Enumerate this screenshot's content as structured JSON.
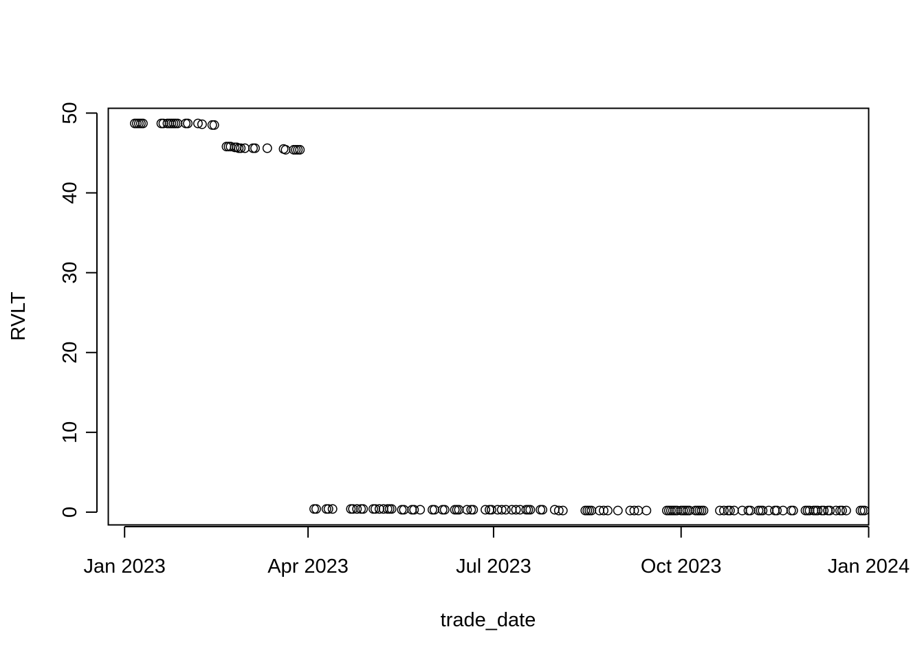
{
  "chart_data": {
    "type": "scatter",
    "xlabel": "trade_date",
    "ylabel": "RVLT",
    "ylim": [
      -1.6,
      50.6
    ],
    "xlim": [
      "2022-12-24",
      "2024-01-01"
    ],
    "x_ticks": [
      {
        "date": "2023-01-01",
        "label": "Jan 2023"
      },
      {
        "date": "2023-04-01",
        "label": "Apr 2023"
      },
      {
        "date": "2023-07-01",
        "label": "Jul 2023"
      },
      {
        "date": "2023-10-01",
        "label": "Oct 2023"
      },
      {
        "date": "2024-01-01",
        "label": "Jan 2024"
      }
    ],
    "y_ticks": [
      0,
      10,
      20,
      30,
      40,
      50
    ],
    "marker": "open-circle",
    "grid": false,
    "series": [
      {
        "points": [
          [
            "2023-01-06",
            48.7
          ],
          [
            "2023-01-07",
            48.7
          ],
          [
            "2023-01-08",
            48.7
          ],
          [
            "2023-01-09",
            48.7
          ],
          [
            "2023-01-10",
            48.7
          ],
          [
            "2023-01-19",
            48.7
          ],
          [
            "2023-01-20",
            48.7
          ],
          [
            "2023-01-22",
            48.7
          ],
          [
            "2023-01-23",
            48.7
          ],
          [
            "2023-01-24",
            48.7
          ],
          [
            "2023-01-25",
            48.7
          ],
          [
            "2023-01-26",
            48.7
          ],
          [
            "2023-01-27",
            48.7
          ],
          [
            "2023-01-31",
            48.7
          ],
          [
            "2023-02-01",
            48.7
          ],
          [
            "2023-02-06",
            48.7
          ],
          [
            "2023-02-08",
            48.6
          ],
          [
            "2023-02-13",
            48.5
          ],
          [
            "2023-02-14",
            48.5
          ],
          [
            "2023-02-20",
            45.8
          ],
          [
            "2023-02-21",
            45.8
          ],
          [
            "2023-02-22",
            45.8
          ],
          [
            "2023-02-24",
            45.7
          ],
          [
            "2023-02-25",
            45.7
          ],
          [
            "2023-02-26",
            45.6
          ],
          [
            "2023-02-27",
            45.6
          ],
          [
            "2023-03-01",
            45.6
          ],
          [
            "2023-03-05",
            45.6
          ],
          [
            "2023-03-06",
            45.6
          ],
          [
            "2023-03-12",
            45.6
          ],
          [
            "2023-03-20",
            45.5
          ],
          [
            "2023-03-21",
            45.4
          ],
          [
            "2023-03-25",
            45.4
          ],
          [
            "2023-03-26",
            45.4
          ],
          [
            "2023-03-27",
            45.4
          ],
          [
            "2023-03-28",
            45.4
          ],
          [
            "2023-04-04",
            0.4
          ],
          [
            "2023-04-05",
            0.4
          ],
          [
            "2023-04-10",
            0.4
          ],
          [
            "2023-04-11",
            0.4
          ],
          [
            "2023-04-13",
            0.4
          ],
          [
            "2023-04-22",
            0.4
          ],
          [
            "2023-04-23",
            0.4
          ],
          [
            "2023-04-25",
            0.4
          ],
          [
            "2023-04-27",
            0.4
          ],
          [
            "2023-04-28",
            0.4
          ],
          [
            "2023-05-03",
            0.4
          ],
          [
            "2023-05-04",
            0.4
          ],
          [
            "2023-05-06",
            0.4
          ],
          [
            "2023-05-08",
            0.4
          ],
          [
            "2023-05-10",
            0.4
          ],
          [
            "2023-05-11",
            0.4
          ],
          [
            "2023-05-12",
            0.4
          ],
          [
            "2023-05-17",
            0.3
          ],
          [
            "2023-05-18",
            0.3
          ],
          [
            "2023-05-22",
            0.3
          ],
          [
            "2023-05-23",
            0.3
          ],
          [
            "2023-05-26",
            0.3
          ],
          [
            "2023-06-01",
            0.3
          ],
          [
            "2023-06-02",
            0.3
          ],
          [
            "2023-06-06",
            0.3
          ],
          [
            "2023-06-07",
            0.3
          ],
          [
            "2023-06-12",
            0.3
          ],
          [
            "2023-06-13",
            0.3
          ],
          [
            "2023-06-14",
            0.3
          ],
          [
            "2023-06-18",
            0.3
          ],
          [
            "2023-06-20",
            0.3
          ],
          [
            "2023-06-21",
            0.3
          ],
          [
            "2023-06-27",
            0.3
          ],
          [
            "2023-06-29",
            0.3
          ],
          [
            "2023-06-30",
            0.3
          ],
          [
            "2023-07-03",
            0.3
          ],
          [
            "2023-07-05",
            0.3
          ],
          [
            "2023-07-07",
            0.3
          ],
          [
            "2023-07-10",
            0.3
          ],
          [
            "2023-07-12",
            0.3
          ],
          [
            "2023-07-14",
            0.3
          ],
          [
            "2023-07-17",
            0.3
          ],
          [
            "2023-07-18",
            0.3
          ],
          [
            "2023-07-19",
            0.3
          ],
          [
            "2023-07-24",
            0.3
          ],
          [
            "2023-07-25",
            0.3
          ],
          [
            "2023-07-31",
            0.3
          ],
          [
            "2023-08-02",
            0.2
          ],
          [
            "2023-08-04",
            0.2
          ],
          [
            "2023-08-15",
            0.2
          ],
          [
            "2023-08-16",
            0.2
          ],
          [
            "2023-08-17",
            0.2
          ],
          [
            "2023-08-18",
            0.2
          ],
          [
            "2023-08-22",
            0.2
          ],
          [
            "2023-08-24",
            0.2
          ],
          [
            "2023-08-26",
            0.2
          ],
          [
            "2023-08-31",
            0.2
          ],
          [
            "2023-09-06",
            0.2
          ],
          [
            "2023-09-08",
            0.2
          ],
          [
            "2023-09-10",
            0.2
          ],
          [
            "2023-09-14",
            0.2
          ],
          [
            "2023-09-24",
            0.2
          ],
          [
            "2023-09-25",
            0.2
          ],
          [
            "2023-09-26",
            0.2
          ],
          [
            "2023-09-27",
            0.2
          ],
          [
            "2023-09-28",
            0.2
          ],
          [
            "2023-09-29",
            0.2
          ],
          [
            "2023-10-01",
            0.2
          ],
          [
            "2023-10-02",
            0.2
          ],
          [
            "2023-10-03",
            0.2
          ],
          [
            "2023-10-04",
            0.2
          ],
          [
            "2023-10-05",
            0.2
          ],
          [
            "2023-10-08",
            0.2
          ],
          [
            "2023-10-09",
            0.2
          ],
          [
            "2023-10-10",
            0.2
          ],
          [
            "2023-10-11",
            0.2
          ],
          [
            "2023-10-12",
            0.2
          ],
          [
            "2023-10-20",
            0.2
          ],
          [
            "2023-10-22",
            0.2
          ],
          [
            "2023-10-24",
            0.2
          ],
          [
            "2023-10-25",
            0.2
          ],
          [
            "2023-10-27",
            0.2
          ],
          [
            "2023-10-31",
            0.2
          ],
          [
            "2023-11-03",
            0.2
          ],
          [
            "2023-11-04",
            0.2
          ],
          [
            "2023-11-08",
            0.2
          ],
          [
            "2023-11-09",
            0.2
          ],
          [
            "2023-11-10",
            0.2
          ],
          [
            "2023-11-13",
            0.2
          ],
          [
            "2023-11-16",
            0.2
          ],
          [
            "2023-11-17",
            0.2
          ],
          [
            "2023-11-20",
            0.2
          ],
          [
            "2023-11-24",
            0.2
          ],
          [
            "2023-11-25",
            0.2
          ],
          [
            "2023-12-01",
            0.2
          ],
          [
            "2023-12-02",
            0.2
          ],
          [
            "2023-12-03",
            0.2
          ],
          [
            "2023-12-05",
            0.2
          ],
          [
            "2023-12-06",
            0.2
          ],
          [
            "2023-12-07",
            0.2
          ],
          [
            "2023-12-09",
            0.2
          ],
          [
            "2023-12-10",
            0.2
          ],
          [
            "2023-12-12",
            0.2
          ],
          [
            "2023-12-13",
            0.2
          ],
          [
            "2023-12-16",
            0.2
          ],
          [
            "2023-12-18",
            0.2
          ],
          [
            "2023-12-19",
            0.2
          ],
          [
            "2023-12-21",
            0.2
          ],
          [
            "2023-12-28",
            0.2
          ],
          [
            "2023-12-29",
            0.2
          ],
          [
            "2023-12-30",
            0.2
          ]
        ]
      }
    ]
  }
}
